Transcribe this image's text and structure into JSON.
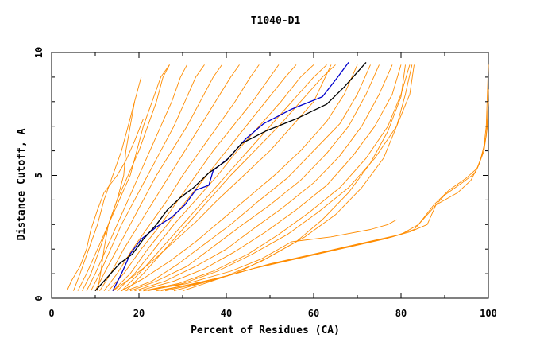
{
  "chart_data": {
    "type": "line",
    "title": "T1040-D1",
    "xlabel": "Percent of Residues (CA)",
    "ylabel": "Distance Cutoff, A",
    "xlim": [
      0,
      100
    ],
    "ylim": [
      0,
      10
    ],
    "x_ticks": [
      "0",
      "20",
      "40",
      "60",
      "80",
      "100"
    ],
    "y_ticks": [
      "0",
      "5",
      "10"
    ],
    "grid": false,
    "colors": {
      "models": "#ff8c00",
      "highlight_blue": "#0000cc",
      "highlight_black": "#000000"
    },
    "series": [
      {
        "color": "#ff8c00",
        "x": [
          3.5,
          4.5,
          6.5,
          8.0,
          9.0,
          10.5,
          12.0,
          15.0,
          17.0,
          19.0,
          21.0
        ],
        "y": [
          0.3,
          0.7,
          1.3,
          2.0,
          2.8,
          3.6,
          4.3,
          5.0,
          5.6,
          6.4,
          7.3
        ]
      },
      {
        "color": "#ff8c00",
        "x": [
          5.0,
          6.5,
          8.5,
          10.5,
          12.0,
          14.0,
          16.0,
          17.5,
          19.0,
          20.5
        ],
        "y": [
          0.3,
          1.0,
          2.0,
          3.0,
          4.0,
          5.0,
          6.0,
          7.0,
          8.0,
          9.0
        ]
      },
      {
        "color": "#ff8c00",
        "x": [
          10.5,
          11.2,
          12.0,
          13.0,
          15.0,
          16.5,
          17.0,
          18.0,
          19.0
        ],
        "y": [
          0.3,
          1.0,
          2.0,
          3.0,
          4.0,
          5.0,
          6.0,
          7.0,
          8.0
        ]
      },
      {
        "color": "#ff8c00",
        "x": [
          6.0,
          8.0,
          10.0,
          12.0,
          14.0,
          16.0,
          18.0,
          19.5,
          21.0,
          23.0,
          25.0,
          27.0
        ],
        "y": [
          0.3,
          1.0,
          1.8,
          2.6,
          3.4,
          4.2,
          5.0,
          6.0,
          7.0,
          8.0,
          9.0,
          9.5
        ]
      },
      {
        "color": "#ff8c00",
        "x": [
          7.0,
          9.0,
          11.0,
          13.0,
          15.0,
          17.5,
          20.0,
          22.0,
          24.0,
          25.5,
          27.0
        ],
        "y": [
          0.3,
          1.0,
          2.0,
          3.0,
          4.0,
          5.0,
          6.0,
          7.0,
          8.0,
          9.0,
          9.5
        ]
      },
      {
        "color": "#ff8c00",
        "x": [
          8.0,
          10.0,
          12.5,
          15.0,
          17.5,
          20.0,
          22.5,
          25.0,
          27.5,
          29.5,
          31.0
        ],
        "y": [
          0.3,
          1.0,
          2.0,
          3.0,
          4.0,
          5.0,
          6.0,
          7.0,
          8.0,
          9.0,
          9.5
        ]
      },
      {
        "color": "#ff8c00",
        "x": [
          9.0,
          11.0,
          13.5,
          16.0,
          19.0,
          22.0,
          25.0,
          28.0,
          30.5,
          33.0,
          35.0
        ],
        "y": [
          0.3,
          1.0,
          2.0,
          3.0,
          4.0,
          5.0,
          6.0,
          7.0,
          8.0,
          9.0,
          9.5
        ]
      },
      {
        "color": "#ff8c00",
        "x": [
          10.0,
          12.0,
          15.0,
          18.0,
          21.0,
          24.0,
          27.5,
          31.0,
          34.0,
          37.0,
          39.0
        ],
        "y": [
          0.3,
          1.0,
          2.0,
          3.0,
          4.0,
          5.0,
          6.0,
          7.0,
          8.0,
          9.0,
          9.5
        ]
      },
      {
        "color": "#ff8c00",
        "x": [
          11.0,
          13.5,
          16.5,
          20.0,
          23.5,
          27.0,
          30.5,
          34.0,
          37.5,
          41.0,
          43.0
        ],
        "y": [
          0.3,
          1.0,
          2.0,
          3.0,
          4.0,
          5.0,
          6.0,
          7.0,
          8.0,
          9.0,
          9.5
        ]
      },
      {
        "color": "#ff8c00",
        "x": [
          12.0,
          15.0,
          18.5,
          22.5,
          26.5,
          30.0,
          34.0,
          38.0,
          42.0,
          45.5,
          47.5
        ],
        "y": [
          0.3,
          1.0,
          2.0,
          3.0,
          4.0,
          5.0,
          6.0,
          7.0,
          8.0,
          9.0,
          9.5
        ]
      },
      {
        "color": "#ff8c00",
        "x": [
          13.0,
          16.5,
          20.5,
          25.0,
          29.0,
          33.0,
          37.0,
          41.5,
          46.0,
          50.0,
          52.0
        ],
        "y": [
          0.3,
          1.0,
          2.0,
          3.0,
          4.0,
          5.0,
          6.0,
          7.0,
          8.0,
          9.0,
          9.5
        ]
      },
      {
        "color": "#ff8c00",
        "x": [
          14.0,
          18.0,
          22.0,
          26.5,
          31.0,
          35.5,
          40.0,
          44.5,
          49.0,
          53.5,
          56.0
        ],
        "y": [
          0.3,
          1.0,
          2.0,
          3.0,
          4.0,
          5.0,
          6.0,
          7.0,
          8.0,
          9.0,
          9.5
        ]
      },
      {
        "color": "#ff8c00",
        "x": [
          15.0,
          19.0,
          23.5,
          28.0,
          33.0,
          38.0,
          42.5,
          47.5,
          52.5,
          57.0,
          60.0
        ],
        "y": [
          0.3,
          1.0,
          2.0,
          3.0,
          4.0,
          5.0,
          6.0,
          7.0,
          8.0,
          9.0,
          9.5
        ]
      },
      {
        "color": "#ff8c00",
        "x": [
          16.0,
          20.0,
          25.0,
          30.0,
          35.0,
          40.0,
          45.0,
          50.0,
          55.0,
          60.0,
          63.0
        ],
        "y": [
          0.3,
          1.0,
          2.0,
          3.0,
          4.0,
          5.0,
          6.0,
          7.0,
          8.0,
          9.0,
          9.5
        ]
      },
      {
        "color": "#ff8c00",
        "x": [
          17.0,
          21.0,
          26.0,
          31.0,
          36.0,
          41.0,
          46.5,
          52.0,
          57.0,
          62.0,
          65.0
        ],
        "y": [
          0.3,
          1.0,
          2.0,
          3.0,
          4.0,
          5.0,
          6.0,
          7.0,
          8.0,
          9.0,
          9.5
        ]
      },
      {
        "color": "#ff8c00",
        "x": [
          14.0,
          18.0,
          23.0,
          28.0,
          33.0,
          38.0,
          44.0,
          50.0,
          55.0,
          60.0,
          64.0
        ],
        "y": [
          0.3,
          0.8,
          1.5,
          2.3,
          3.1,
          4.0,
          5.0,
          6.0,
          7.0,
          8.0,
          9.5
        ]
      },
      {
        "color": "#ff8c00",
        "x": [
          16.0,
          21.0,
          27.0,
          33.0,
          39.0,
          45.0,
          51.0,
          57.0,
          63.0,
          67.0,
          70.0
        ],
        "y": [
          0.3,
          0.8,
          1.5,
          2.3,
          3.2,
          4.1,
          5.0,
          6.0,
          7.2,
          8.3,
          9.5
        ]
      },
      {
        "color": "#ff8c00",
        "x": [
          17.0,
          23.0,
          29.0,
          35.0,
          41.0,
          47.0,
          54.0,
          60.0,
          66.0,
          70.0,
          73.0
        ],
        "y": [
          0.3,
          0.7,
          1.4,
          2.2,
          3.0,
          3.9,
          4.9,
          6.0,
          7.1,
          8.3,
          9.5
        ]
      },
      {
        "color": "#ff8c00",
        "x": [
          18.0,
          24.0,
          31.0,
          37.0,
          43.0,
          50.0,
          57.0,
          63.0,
          68.0,
          72.0,
          75.0
        ],
        "y": [
          0.3,
          0.7,
          1.3,
          2.1,
          2.9,
          3.8,
          4.8,
          5.9,
          7.0,
          8.3,
          9.5
        ]
      },
      {
        "color": "#ff8c00",
        "x": [
          19.0,
          26.0,
          33.0,
          40.0,
          46.0,
          53.0,
          60.0,
          66.0,
          71.0,
          75.0,
          78.0
        ],
        "y": [
          0.3,
          0.7,
          1.3,
          2.0,
          2.8,
          3.7,
          4.7,
          5.8,
          7.0,
          8.3,
          9.5
        ]
      },
      {
        "color": "#ff8c00",
        "x": [
          20.0,
          28.0,
          35.0,
          42.0,
          49.0,
          56.0,
          63.0,
          69.0,
          74.0,
          78.0,
          80.0
        ],
        "y": [
          0.3,
          0.7,
          1.2,
          1.9,
          2.7,
          3.6,
          4.6,
          5.8,
          7.0,
          8.3,
          9.5
        ]
      },
      {
        "color": "#ff8c00",
        "x": [
          21.0,
          29.0,
          37.0,
          45.0,
          52.0,
          59.0,
          66.0,
          72.0,
          77.0,
          80.0,
          82.0
        ],
        "y": [
          0.3,
          0.6,
          1.1,
          1.8,
          2.6,
          3.5,
          4.5,
          5.7,
          7.0,
          8.3,
          9.5
        ]
      },
      {
        "color": "#ff8c00",
        "x": [
          22.0,
          30.0,
          38.0,
          46.0,
          54.0,
          61.0,
          68.0,
          74.0,
          79.0,
          82.0,
          83.0
        ],
        "y": [
          0.3,
          0.6,
          1.1,
          1.8,
          2.6,
          3.5,
          4.5,
          5.7,
          7.0,
          8.3,
          9.5
        ]
      },
      {
        "color": "#ff8c00",
        "x": [
          24.0,
          33.0,
          42.0,
          50.0,
          58.0,
          65.0,
          71.0,
          76.0,
          79.0,
          81.0,
          82.5
        ],
        "y": [
          0.3,
          0.6,
          1.0,
          1.7,
          2.5,
          3.4,
          4.5,
          5.7,
          7.0,
          8.3,
          9.5
        ]
      },
      {
        "color": "#ff8c00",
        "x": [
          25.0,
          30.0,
          40.0,
          48.0,
          56.0,
          62.0,
          68.0,
          73.0,
          77.0,
          80.0,
          81.0
        ],
        "y": [
          0.3,
          0.5,
          0.9,
          1.5,
          2.3,
          3.2,
          4.3,
          5.5,
          6.8,
          8.2,
          9.5
        ]
      },
      {
        "color": "#ff8c00",
        "x": [
          21.0,
          31.0,
          41.0,
          48.0,
          55.0,
          64.0,
          73.0,
          77.0,
          79.0
        ],
        "y": [
          0.3,
          0.6,
          1.1,
          1.6,
          2.3,
          2.5,
          2.8,
          3.0,
          3.2
        ]
      },
      {
        "color": "#ff8c00",
        "x": [
          26.0,
          36.0,
          46.0,
          56.0,
          66.0,
          76.0,
          82.0,
          86.0,
          88.0,
          93.0,
          96.0,
          98.0,
          99.0,
          99.5,
          100.0
        ],
        "y": [
          0.3,
          0.7,
          1.2,
          1.6,
          2.0,
          2.4,
          2.7,
          3.0,
          3.8,
          4.3,
          4.8,
          5.5,
          6.2,
          7.0,
          9.5
        ]
      },
      {
        "color": "#ff8c00",
        "x": [
          28.0,
          38.0,
          48.0,
          58.0,
          68.0,
          78.0,
          83.0,
          87.0,
          90.0,
          94.0,
          97.0,
          98.5,
          99.5,
          100.0
        ],
        "y": [
          0.3,
          0.8,
          1.3,
          1.7,
          2.1,
          2.5,
          2.8,
          3.6,
          4.2,
          4.7,
          5.1,
          5.8,
          6.6,
          8.0
        ]
      },
      {
        "color": "#ff8c00",
        "x": [
          30.0,
          40.0,
          50.0,
          60.0,
          70.0,
          80.0,
          84.0,
          87.5,
          91.0,
          95.0,
          97.5,
          99.0,
          99.8,
          100.0
        ],
        "y": [
          0.3,
          0.9,
          1.4,
          1.8,
          2.2,
          2.6,
          3.0,
          3.8,
          4.4,
          4.9,
          5.3,
          6.0,
          7.0,
          8.5
        ]
      },
      {
        "color": "#0000cc",
        "x": [
          14.0,
          16.0,
          18.0,
          20.5,
          24.0,
          27.5,
          30.5,
          33.0,
          36.0,
          37.0,
          40.5,
          44.5,
          48.5,
          55.0,
          62.0,
          65.5,
          68.0
        ],
        "y": [
          0.3,
          1.0,
          1.8,
          2.4,
          2.9,
          3.3,
          3.8,
          4.4,
          4.6,
          5.2,
          5.7,
          6.5,
          7.1,
          7.7,
          8.2,
          9.0,
          9.6
        ]
      },
      {
        "color": "#000000",
        "x": [
          10.0,
          12.5,
          15.5,
          18.5,
          21.0,
          24.0,
          26.5,
          29.5,
          32.5,
          36.0,
          40.0,
          43.5,
          49.0,
          56.0,
          63.0,
          67.0,
          72.0
        ],
        "y": [
          0.3,
          0.8,
          1.4,
          1.8,
          2.4,
          3.0,
          3.6,
          4.1,
          4.5,
          5.1,
          5.6,
          6.3,
          6.8,
          7.3,
          7.9,
          8.6,
          9.6
        ]
      }
    ]
  }
}
